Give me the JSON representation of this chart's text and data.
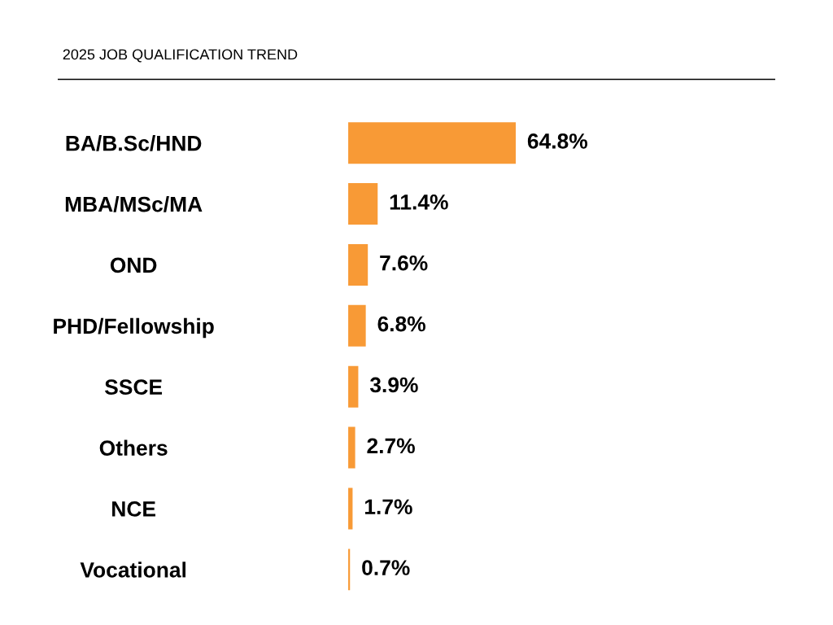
{
  "chart_data": {
    "type": "bar",
    "orientation": "horizontal",
    "title": "2025 JOB QUALIFICATION TREND",
    "categories": [
      "BA/B.Sc/HND",
      "MBA/MSc/MA",
      "OND",
      "PHD/Fellowship",
      "SSCE",
      "Others",
      "NCE",
      "Vocational"
    ],
    "values": [
      64.8,
      11.4,
      7.6,
      6.8,
      3.9,
      2.7,
      1.7,
      0.7
    ],
    "value_labels": [
      "64.8%",
      "11.4%",
      "7.6%",
      "6.8%",
      "3.9%",
      "2.7%",
      "1.7%",
      "0.7%"
    ],
    "color": "#f89a36",
    "grid": false,
    "legend": false,
    "tick_labels": "y"
  }
}
